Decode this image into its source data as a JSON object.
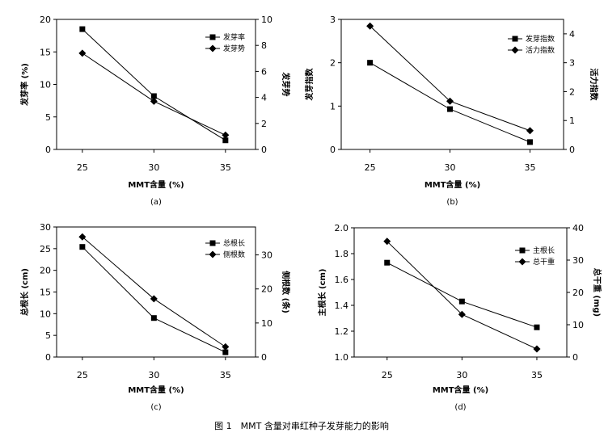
{
  "figure_caption": "图 1　MMT 含量对串红种子发芽能力的影响",
  "chart_data": [
    {
      "type": "line",
      "panel_label": "(a)",
      "xlabel": "MMT含量 (%)",
      "ylabel": "发芽率 (%)",
      "y2label": "发芽势",
      "x": [
        25,
        30,
        35
      ],
      "xticks": [
        25,
        30,
        35
      ],
      "xlim": [
        23.2,
        37.1
      ],
      "ylim": [
        0,
        20
      ],
      "yticks": [
        0,
        5,
        10,
        15,
        20
      ],
      "y2lim": [
        0,
        10
      ],
      "y2ticks": [
        0,
        2,
        4,
        6,
        8,
        10
      ],
      "legend_position": "top-right",
      "series": [
        {
          "name": "发芽率",
          "values": [
            18.5,
            8.2,
            1.4
          ],
          "axis": "left",
          "marker": "square"
        },
        {
          "name": "发芽势",
          "values": [
            7.4,
            3.7,
            1.1
          ],
          "axis": "right",
          "marker": "diamond"
        }
      ]
    },
    {
      "type": "line",
      "panel_label": "(b)",
      "xlabel": "MMT含量 (%)",
      "ylabel": "发芽指数",
      "y2label": "活力指数",
      "x": [
        25,
        30,
        35
      ],
      "xticks": [
        25,
        30,
        35
      ],
      "xlim": [
        23.2,
        37.1
      ],
      "ylim": [
        0,
        3
      ],
      "yticks": [
        0,
        1,
        2,
        3
      ],
      "y2lim": [
        0,
        4.5
      ],
      "y2ticks": [
        0,
        1,
        2,
        3,
        4
      ],
      "legend_position": "top-right",
      "series": [
        {
          "name": "发芽指数",
          "values": [
            2.0,
            0.93,
            0.17
          ],
          "axis": "left",
          "marker": "square"
        },
        {
          "name": "活力指数",
          "values": [
            4.27,
            1.67,
            0.65
          ],
          "axis": "right",
          "marker": "diamond"
        }
      ]
    },
    {
      "type": "line",
      "panel_label": "(c)",
      "xlabel": "MMT含量 (%)",
      "ylabel": "总根长 (cm)",
      "y2label": "侧根数 (条)",
      "x": [
        25,
        30,
        35
      ],
      "xticks": [
        25,
        30,
        35
      ],
      "xlim": [
        23.2,
        37.1
      ],
      "ylim": [
        0,
        30
      ],
      "yticks": [
        0,
        5,
        10,
        15,
        20,
        25,
        30
      ],
      "y2lim": [
        0,
        38.2
      ],
      "y2ticks": [
        0,
        10,
        20,
        30
      ],
      "legend_position": "top-right",
      "series": [
        {
          "name": "总根长",
          "values": [
            25.4,
            9.0,
            1.1
          ],
          "axis": "left",
          "marker": "square"
        },
        {
          "name": "侧根数",
          "values": [
            35.3,
            17.1,
            3.0
          ],
          "axis": "right",
          "marker": "diamond"
        }
      ]
    },
    {
      "type": "line",
      "panel_label": "(d)",
      "xlabel": "MMT含量 (%)",
      "ylabel": "主根长 (cm)",
      "y2label": "总干重 (mg)",
      "x": [
        25,
        30,
        35
      ],
      "xticks": [
        25,
        30,
        35
      ],
      "xlim": [
        22.8,
        37.0
      ],
      "ylim": [
        1.0,
        2.0
      ],
      "yticks": [
        1.0,
        1.2,
        1.4,
        1.6,
        1.8,
        2.0
      ],
      "y2lim": [
        0,
        40
      ],
      "y2ticks": [
        0,
        10,
        20,
        30,
        40
      ],
      "legend_position": "top-right",
      "series": [
        {
          "name": "主根长",
          "values": [
            1.73,
            1.43,
            1.23
          ],
          "axis": "left",
          "marker": "square"
        },
        {
          "name": "总干重",
          "values": [
            35.8,
            13.2,
            2.5
          ],
          "axis": "right",
          "marker": "diamond"
        }
      ]
    }
  ]
}
